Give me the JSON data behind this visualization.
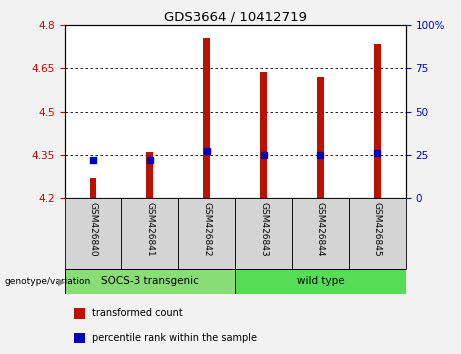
{
  "title": "GDS3664 / 10412719",
  "samples": [
    "GSM426840",
    "GSM426841",
    "GSM426842",
    "GSM426843",
    "GSM426844",
    "GSM426845"
  ],
  "transformed_counts": [
    4.27,
    4.36,
    4.755,
    4.635,
    4.62,
    4.735
  ],
  "percentile_ranks": [
    22,
    22,
    27,
    25,
    25,
    26
  ],
  "ymin": 4.2,
  "ymax": 4.8,
  "yticks_left": [
    4.2,
    4.35,
    4.5,
    4.65,
    4.8
  ],
  "yticks_right": [
    0,
    25,
    50,
    75,
    100
  ],
  "bar_color": "#bb1100",
  "dot_color": "#0000bb",
  "groups": [
    {
      "label": "SOCS-3 transgenic",
      "start": 0,
      "end": 3,
      "color": "#88dd77"
    },
    {
      "label": "wild type",
      "start": 3,
      "end": 6,
      "color": "#55dd55"
    }
  ],
  "legend_items": [
    {
      "color": "#bb1100",
      "label": "transformed count"
    },
    {
      "color": "#0000bb",
      "label": "percentile rank within the sample"
    }
  ],
  "left_axis_color": "#cc0000",
  "right_axis_color": "#0000cc",
  "sample_box_color": "#d4d4d4",
  "fig_bg_color": "#f2f2f2",
  "plot_bg_color": "#ffffff",
  "bar_width": 0.12
}
